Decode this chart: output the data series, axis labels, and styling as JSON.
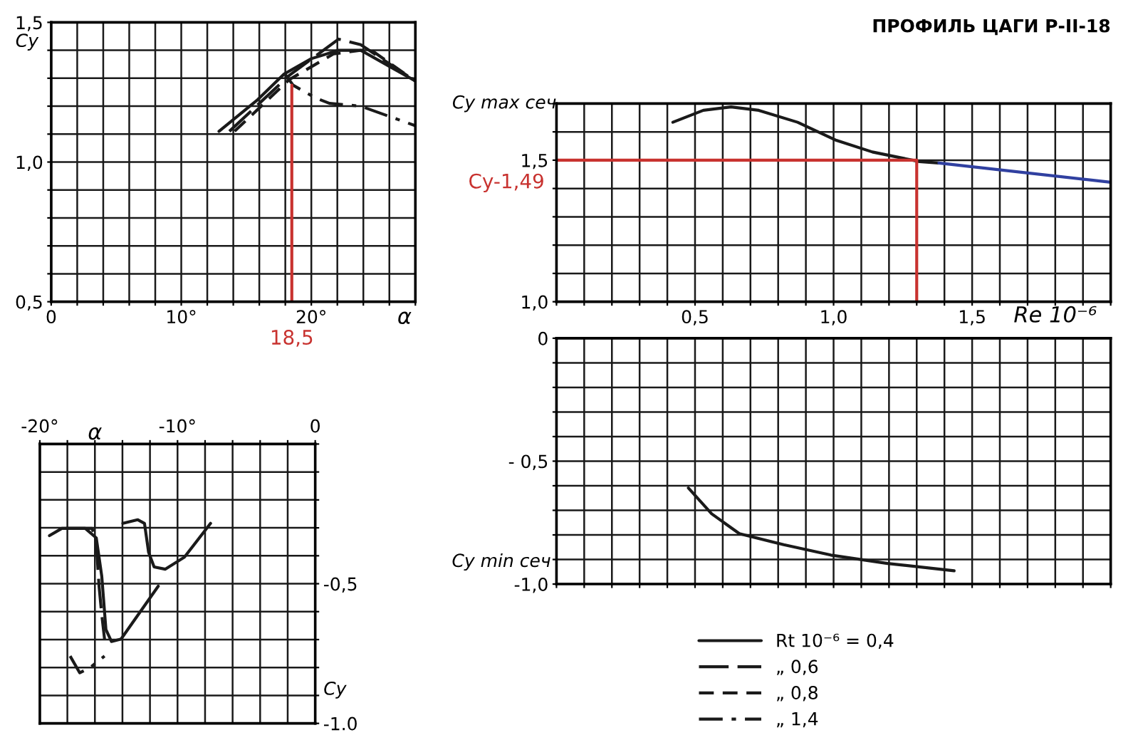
{
  "chart_data": [
    {
      "type": "line",
      "xlabel": "α",
      "ylabel": "Cy",
      "xlim": [
        0,
        28
      ],
      "ylim": [
        0.5,
        1.5
      ],
      "grid": true,
      "legend": "bottom",
      "xticks": [
        {
          "value": 0,
          "label": "0"
        },
        {
          "value": 2,
          "label": null
        },
        {
          "value": 4,
          "label": null
        },
        {
          "value": 6,
          "label": null
        },
        {
          "value": 8,
          "label": null
        },
        {
          "value": 10,
          "label": "10°"
        },
        {
          "value": 12,
          "label": null
        },
        {
          "value": 14,
          "label": null
        },
        {
          "value": 16,
          "label": null
        },
        {
          "value": 18,
          "label": null
        },
        {
          "value": 20,
          "label": "20°"
        },
        {
          "value": 22,
          "label": null
        },
        {
          "value": 24,
          "label": null
        },
        {
          "value": 26,
          "label": null
        },
        {
          "value": 28,
          "label": null
        }
      ],
      "yticks": [
        {
          "value": 0.5,
          "label": "0,5"
        },
        {
          "value": 0.6,
          "label": null
        },
        {
          "value": 0.7,
          "label": null
        },
        {
          "value": 0.8,
          "label": null
        },
        {
          "value": 0.9,
          "label": null
        },
        {
          "value": 1.0,
          "label": "1,0"
        },
        {
          "value": 1.1,
          "label": null
        },
        {
          "value": 1.2,
          "label": null
        },
        {
          "value": 1.3,
          "label": null
        },
        {
          "value": 1.4,
          "label": null
        },
        {
          "value": 1.5,
          "label": "1,5"
        }
      ],
      "series": [
        {
          "name": "Rt 10⁻⁶ = 0,4",
          "color": "#1a1a1a",
          "line_style": "solid",
          "x": [
            12.9,
            15.8,
            17.9,
            20.0,
            22.1,
            23.8,
            25.9,
            28.0
          ],
          "values": [
            1.11,
            1.22,
            1.315,
            1.37,
            1.4,
            1.4,
            1.345,
            1.29
          ]
        },
        {
          "name": "„ 0,6",
          "color": "#1a1a1a",
          "line_style": "long_dashed",
          "x": [
            13.7,
            18.3,
            22.1,
            23.8,
            28.0
          ],
          "values": [
            1.11,
            1.31,
            1.44,
            1.42,
            1.29
          ]
        },
        {
          "name": "„ 0,8",
          "color": "#1a1a1a",
          "line_style": "dashed",
          "x": [
            14.1,
            18.3,
            21.7,
            24.5,
            28.0
          ],
          "values": [
            1.11,
            1.295,
            1.387,
            1.404,
            1.29
          ]
        },
        {
          "name": "„ 1,4",
          "color": "#1a1a1a",
          "line_style": "dashdot",
          "x": [
            17.9,
            18.6,
            20.3,
            21.4,
            23.8,
            28.0
          ],
          "values": [
            1.32,
            1.275,
            1.23,
            1.21,
            1.2,
            1.13
          ]
        },
        {
          "color": "#c8322f",
          "line_style": "solid",
          "x": [
            18.5,
            18.5
          ],
          "values": [
            0.5,
            1.275
          ]
        }
      ],
      "annotations": [
        {
          "text": "18,5",
          "x": 18.5,
          "y": 0.5
        }
      ]
    },
    {
      "type": "line",
      "title": "ПРОФИЛЬ ЦАГИ Р-II-18",
      "xlabel": "Re 10⁻⁶",
      "ylabel": "Cy max сеч",
      "xlim": [
        0,
        2.0
      ],
      "ylim": [
        1.0,
        1.7
      ],
      "grid": true,
      "xticks": [
        {
          "value": 0,
          "label": null
        },
        {
          "value": 0.1,
          "label": null
        },
        {
          "value": 0.2,
          "label": null
        },
        {
          "value": 0.3,
          "label": null
        },
        {
          "value": 0.4,
          "label": null
        },
        {
          "value": 0.5,
          "label": "0,5"
        },
        {
          "value": 0.6,
          "label": null
        },
        {
          "value": 0.7,
          "label": null
        },
        {
          "value": 0.8,
          "label": null
        },
        {
          "value": 0.9,
          "label": null
        },
        {
          "value": 1.0,
          "label": "1,0"
        },
        {
          "value": 1.1,
          "label": null
        },
        {
          "value": 1.2,
          "label": null
        },
        {
          "value": 1.3,
          "label": null
        },
        {
          "value": 1.4,
          "label": null
        },
        {
          "value": 1.5,
          "label": "1,5"
        },
        {
          "value": 1.6,
          "label": null
        },
        {
          "value": 1.7,
          "label": null
        },
        {
          "value": 1.8,
          "label": null
        },
        {
          "value": 1.9,
          "label": null
        },
        {
          "value": 2.0,
          "label": null
        }
      ],
      "yticks": [
        {
          "value": 1.0,
          "label": "1,0"
        },
        {
          "value": 1.1,
          "label": null
        },
        {
          "value": 1.2,
          "label": null
        },
        {
          "value": 1.3,
          "label": null
        },
        {
          "value": 1.4,
          "label": null
        },
        {
          "value": 1.5,
          "label": "1,5"
        },
        {
          "value": 1.6,
          "label": null
        },
        {
          "value": 1.7,
          "label": null
        }
      ],
      "series": [
        {
          "color": "#1a1a1a",
          "line_style": "solid",
          "x": [
            0.42,
            0.53,
            0.63,
            0.73,
            0.87,
            1.01,
            1.14,
            1.25,
            1.31,
            1.38
          ],
          "values": [
            1.634,
            1.676,
            1.688,
            1.676,
            1.634,
            1.57,
            1.529,
            1.507,
            1.495,
            1.49
          ]
        },
        {
          "color": "#3040a0",
          "line_style": "solid",
          "x": [
            1.38,
            2.0
          ],
          "values": [
            1.49,
            1.422
          ]
        },
        {
          "color": "#c8322f",
          "line_style": "solid",
          "x": [
            0,
            1.3
          ],
          "values": [
            1.5,
            1.5
          ]
        },
        {
          "color": "#c8322f",
          "line_style": "solid",
          "x": [
            1.3,
            1.3
          ],
          "values": [
            1.5,
            1.0
          ]
        }
      ],
      "annotations": [
        {
          "text": "Cy-1,49",
          "x": 0,
          "y": 1.49
        }
      ]
    },
    {
      "type": "line",
      "ylabel": "Cy min сеч",
      "xlim": [
        0,
        2.0
      ],
      "ylim": [
        -1.0,
        0
      ],
      "grid": true,
      "tick_labels": "y",
      "xticks": [
        {
          "value": 0,
          "label": null
        },
        {
          "value": 0.1,
          "label": null
        },
        {
          "value": 0.2,
          "label": null
        },
        {
          "value": 0.3,
          "label": null
        },
        {
          "value": 0.4,
          "label": null
        },
        {
          "value": 0.5,
          "label": null
        },
        {
          "value": 0.6,
          "label": null
        },
        {
          "value": 0.7,
          "label": null
        },
        {
          "value": 0.8,
          "label": null
        },
        {
          "value": 0.9,
          "label": null
        },
        {
          "value": 1.0,
          "label": null
        },
        {
          "value": 1.1,
          "label": null
        },
        {
          "value": 1.2,
          "label": null
        },
        {
          "value": 1.3,
          "label": null
        },
        {
          "value": 1.4,
          "label": null
        },
        {
          "value": 1.5,
          "label": null
        },
        {
          "value": 1.6,
          "label": null
        },
        {
          "value": 1.7,
          "label": null
        },
        {
          "value": 1.8,
          "label": null
        },
        {
          "value": 1.9,
          "label": null
        },
        {
          "value": 2.0,
          "label": null
        }
      ],
      "yticks": [
        {
          "value": 0,
          "label": "0"
        },
        {
          "value": -0.1,
          "label": null
        },
        {
          "value": -0.2,
          "label": null
        },
        {
          "value": -0.3,
          "label": null
        },
        {
          "value": -0.4,
          "label": null
        },
        {
          "value": -0.5,
          "label": "- 0,5"
        },
        {
          "value": -0.6,
          "label": null
        },
        {
          "value": -0.7,
          "label": null
        },
        {
          "value": -0.8,
          "label": null
        },
        {
          "value": -0.9,
          "label": null
        },
        {
          "value": -1.0,
          "label": "-1,0"
        }
      ],
      "series": [
        {
          "color": "#1a1a1a",
          "line_style": "solid",
          "x": [
            0.476,
            0.56,
            0.66,
            0.82,
            0.99,
            1.195,
            1.435
          ],
          "values": [
            -0.609,
            -0.714,
            -0.795,
            -0.84,
            -0.882,
            -0.916,
            -0.946
          ]
        }
      ]
    },
    {
      "type": "line",
      "xlabel": "α",
      "ylabel": "Cy",
      "xlim": [
        -20,
        0
      ],
      "ylim": [
        -1.0,
        0
      ],
      "grid": true,
      "xticks": [
        {
          "value": -20,
          "label": "-20°"
        },
        {
          "value": -18,
          "label": null
        },
        {
          "value": -16,
          "label": null
        },
        {
          "value": -14,
          "label": null
        },
        {
          "value": -12,
          "label": null
        },
        {
          "value": -10,
          "label": "-10°"
        },
        {
          "value": -8,
          "label": null
        },
        {
          "value": -6,
          "label": null
        },
        {
          "value": -4,
          "label": null
        },
        {
          "value": -2,
          "label": null
        },
        {
          "value": 0,
          "label": "0"
        }
      ],
      "yticks": [
        {
          "value": 0,
          "label": null
        },
        {
          "value": -0.1,
          "label": null
        },
        {
          "value": -0.2,
          "label": null
        },
        {
          "value": -0.3,
          "label": null
        },
        {
          "value": -0.4,
          "label": null
        },
        {
          "value": -0.5,
          "label": "-0,5"
        },
        {
          "value": -0.6,
          "label": null
        },
        {
          "value": -0.7,
          "label": null
        },
        {
          "value": -0.8,
          "label": null
        },
        {
          "value": -0.9,
          "label": null
        },
        {
          "value": -1.0,
          "label": "-1.0"
        }
      ],
      "series": [
        {
          "color": "#1a1a1a",
          "line_style": "solid",
          "x": [
            -19.3,
            -18.4,
            -16.7,
            -15.9,
            -15.5,
            -15.2,
            -14.8,
            -14.1,
            -11.4
          ],
          "values": [
            -0.328,
            -0.302,
            -0.302,
            -0.336,
            -0.474,
            -0.664,
            -0.707,
            -0.698,
            -0.509
          ]
        },
        {
          "color": "#1a1a1a",
          "line_style": "solid",
          "x": [
            -13.97,
            -12.9,
            -12.4,
            -12.1,
            -11.7,
            -10.9,
            -9.5,
            -7.6
          ],
          "values": [
            -0.284,
            -0.271,
            -0.284,
            -0.388,
            -0.44,
            -0.448,
            -0.405,
            -0.284
          ]
        },
        {
          "color": "#1a1a1a",
          "line_style": "long_dashed",
          "x": [
            -18.1,
            -16.2,
            -15.9,
            -15.7,
            -15.5,
            -15.3
          ],
          "values": [
            -0.302,
            -0.302,
            -0.353,
            -0.509,
            -0.612,
            -0.698
          ]
        },
        {
          "color": "#1a1a1a",
          "line_style": "dashdot",
          "x": [
            -17.8,
            -17.1,
            -16.4,
            -15.3
          ],
          "values": [
            -0.759,
            -0.819,
            -0.802,
            -0.759
          ]
        }
      ]
    }
  ]
}
